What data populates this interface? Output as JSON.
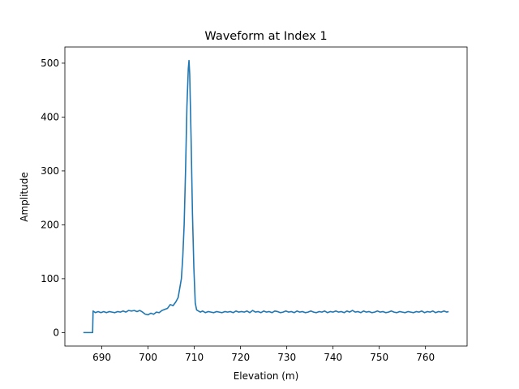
{
  "chart_data": {
    "type": "line",
    "title": "Waveform at Index 1",
    "xlabel": "Elevation (m)",
    "ylabel": "Amplitude",
    "xlim": [
      682,
      769
    ],
    "ylim": [
      -25,
      530
    ],
    "xticks": [
      690,
      700,
      710,
      720,
      730,
      740,
      750,
      760
    ],
    "yticks": [
      0,
      100,
      200,
      300,
      400,
      500
    ],
    "grid": false,
    "series": [
      {
        "color": "#1f77b4",
        "points": [
          [
            686.0,
            0
          ],
          [
            688.0,
            0
          ],
          [
            688.1,
            40
          ],
          [
            688.6,
            37
          ],
          [
            689.2,
            39
          ],
          [
            689.8,
            37
          ],
          [
            690.4,
            39
          ],
          [
            691.0,
            37
          ],
          [
            691.6,
            39
          ],
          [
            692.2,
            38
          ],
          [
            692.8,
            37
          ],
          [
            693.4,
            39
          ],
          [
            694.0,
            38
          ],
          [
            694.6,
            40
          ],
          [
            695.2,
            38
          ],
          [
            695.8,
            41
          ],
          [
            696.4,
            40
          ],
          [
            697.0,
            41
          ],
          [
            697.6,
            39
          ],
          [
            698.2,
            41
          ],
          [
            698.8,
            38
          ],
          [
            699.4,
            34
          ],
          [
            700.0,
            33
          ],
          [
            700.6,
            36
          ],
          [
            701.2,
            34
          ],
          [
            701.8,
            38
          ],
          [
            702.4,
            37
          ],
          [
            703.0,
            41
          ],
          [
            703.6,
            43
          ],
          [
            704.2,
            45
          ],
          [
            704.8,
            52
          ],
          [
            705.4,
            50
          ],
          [
            706.0,
            57
          ],
          [
            706.5,
            65
          ],
          [
            706.8,
            80
          ],
          [
            707.2,
            100
          ],
          [
            707.5,
            140
          ],
          [
            707.8,
            200
          ],
          [
            708.1,
            300
          ],
          [
            708.4,
            420
          ],
          [
            708.7,
            490
          ],
          [
            708.85,
            505
          ],
          [
            709.0,
            480
          ],
          [
            709.3,
            360
          ],
          [
            709.6,
            220
          ],
          [
            709.9,
            120
          ],
          [
            710.2,
            55
          ],
          [
            710.5,
            42
          ],
          [
            710.9,
            40
          ],
          [
            711.3,
            38
          ],
          [
            711.8,
            40
          ],
          [
            712.4,
            37
          ],
          [
            713.0,
            39
          ],
          [
            713.6,
            38
          ],
          [
            714.2,
            37
          ],
          [
            714.8,
            39
          ],
          [
            715.4,
            38
          ],
          [
            716.0,
            37
          ],
          [
            716.6,
            39
          ],
          [
            717.2,
            38
          ],
          [
            717.8,
            39
          ],
          [
            718.4,
            37
          ],
          [
            719.0,
            40
          ],
          [
            719.6,
            38
          ],
          [
            720.2,
            39
          ],
          [
            720.8,
            38
          ],
          [
            721.4,
            40
          ],
          [
            722.0,
            37
          ],
          [
            722.6,
            41
          ],
          [
            723.2,
            38
          ],
          [
            723.8,
            39
          ],
          [
            724.4,
            37
          ],
          [
            725.0,
            40
          ],
          [
            725.6,
            38
          ],
          [
            726.2,
            39
          ],
          [
            726.8,
            37
          ],
          [
            727.4,
            40
          ],
          [
            728.0,
            39
          ],
          [
            728.6,
            37
          ],
          [
            729.2,
            38
          ],
          [
            729.8,
            40
          ],
          [
            730.4,
            38
          ],
          [
            731.0,
            39
          ],
          [
            731.6,
            37
          ],
          [
            732.2,
            40
          ],
          [
            732.8,
            38
          ],
          [
            733.4,
            39
          ],
          [
            734.0,
            37
          ],
          [
            734.6,
            38
          ],
          [
            735.2,
            40
          ],
          [
            735.8,
            38
          ],
          [
            736.4,
            37
          ],
          [
            737.0,
            39
          ],
          [
            737.6,
            38
          ],
          [
            738.2,
            40
          ],
          [
            738.8,
            37
          ],
          [
            739.4,
            39
          ],
          [
            740.0,
            38
          ],
          [
            740.6,
            40
          ],
          [
            741.2,
            38
          ],
          [
            741.8,
            39
          ],
          [
            742.4,
            37
          ],
          [
            743.0,
            40
          ],
          [
            743.6,
            38
          ],
          [
            744.2,
            41
          ],
          [
            744.8,
            38
          ],
          [
            745.4,
            39
          ],
          [
            746.0,
            37
          ],
          [
            746.6,
            40
          ],
          [
            747.2,
            38
          ],
          [
            747.8,
            39
          ],
          [
            748.4,
            37
          ],
          [
            749.0,
            38
          ],
          [
            749.6,
            40
          ],
          [
            750.2,
            38
          ],
          [
            750.8,
            39
          ],
          [
            751.4,
            37
          ],
          [
            752.0,
            38
          ],
          [
            752.6,
            40
          ],
          [
            753.2,
            38
          ],
          [
            753.8,
            37
          ],
          [
            754.4,
            39
          ],
          [
            755.0,
            38
          ],
          [
            755.6,
            37
          ],
          [
            756.2,
            39
          ],
          [
            756.8,
            38
          ],
          [
            757.4,
            37
          ],
          [
            758.0,
            39
          ],
          [
            758.6,
            38
          ],
          [
            759.2,
            40
          ],
          [
            759.8,
            37
          ],
          [
            760.4,
            39
          ],
          [
            761.0,
            38
          ],
          [
            761.6,
            40
          ],
          [
            762.2,
            37
          ],
          [
            762.8,
            39
          ],
          [
            763.4,
            38
          ],
          [
            764.0,
            40
          ],
          [
            764.6,
            38
          ],
          [
            765.0,
            39
          ]
        ]
      }
    ]
  }
}
